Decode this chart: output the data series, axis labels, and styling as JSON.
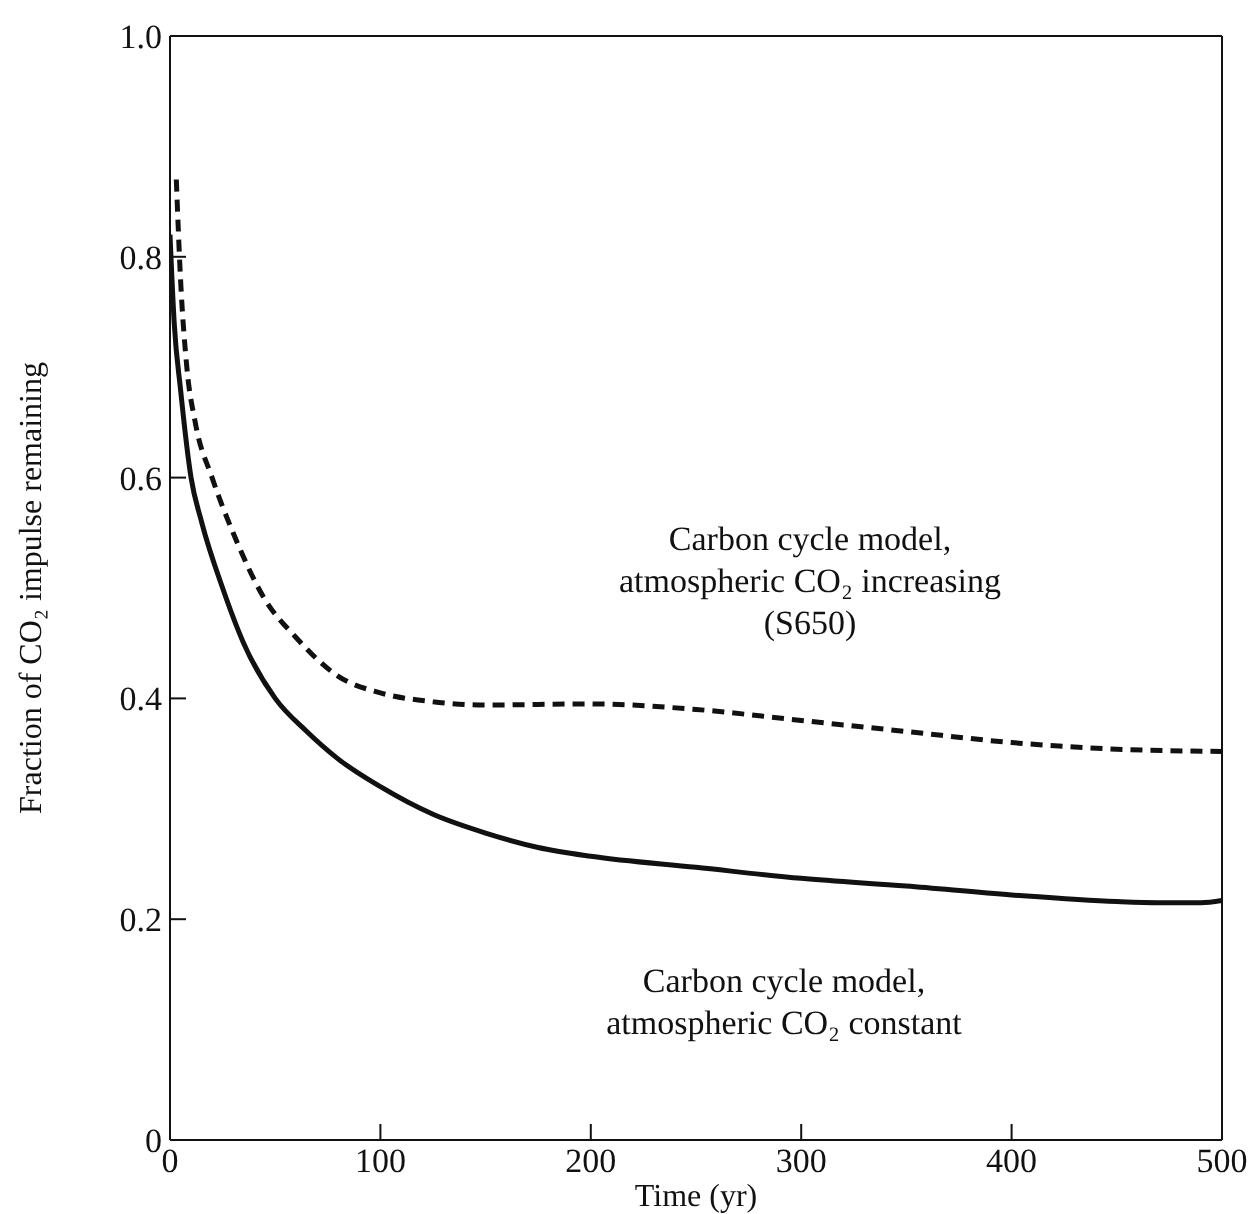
{
  "chart_data": {
    "type": "line",
    "xlabel": "Time (yr)",
    "ylabel": "Fraction of CO₂ impulse remaining",
    "xlim": [
      0,
      500
    ],
    "xticks": [
      0,
      100,
      200,
      300,
      400,
      500
    ],
    "ylim": [
      0,
      1
    ],
    "yticks": [
      0,
      0.2,
      0.4,
      0.6,
      0.8,
      {
        "value": 1,
        "label": "1.0"
      }
    ],
    "marker": "none",
    "series": [
      {
        "color": "#111111",
        "line_style": "solid",
        "x": [
          0,
          2,
          5,
          10,
          15,
          25,
          35,
          50,
          65,
          80,
          100,
          125,
          150,
          175,
          200,
          250,
          300,
          350,
          400,
          450,
          470,
          490,
          500
        ],
        "values": [
          0.82,
          0.74,
          0.68,
          0.6,
          0.56,
          0.5,
          0.45,
          0.4,
          0.37,
          0.345,
          0.32,
          0.295,
          0.278,
          0.265,
          0.257,
          0.247,
          0.237,
          0.23,
          0.222,
          0.216,
          0.215,
          0.215,
          0.217
        ]
      },
      {
        "color": "#111111",
        "line_style": "dashed",
        "x": [
          3,
          5,
          8,
          12,
          20,
          30,
          45,
          60,
          80,
          100,
          125,
          150,
          200,
          250,
          300,
          350,
          400,
          450,
          500
        ],
        "values": [
          0.87,
          0.78,
          0.7,
          0.65,
          0.6,
          0.55,
          0.49,
          0.455,
          0.42,
          0.405,
          0.397,
          0.394,
          0.395,
          0.39,
          0.38,
          0.37,
          0.36,
          0.354,
          0.352
        ]
      }
    ],
    "annotations": [
      "Carbon cycle model,\natmospheric CO₂ increasing\n(S650)",
      "Carbon cycle model,\natmospheric CO₂ constant"
    ]
  }
}
